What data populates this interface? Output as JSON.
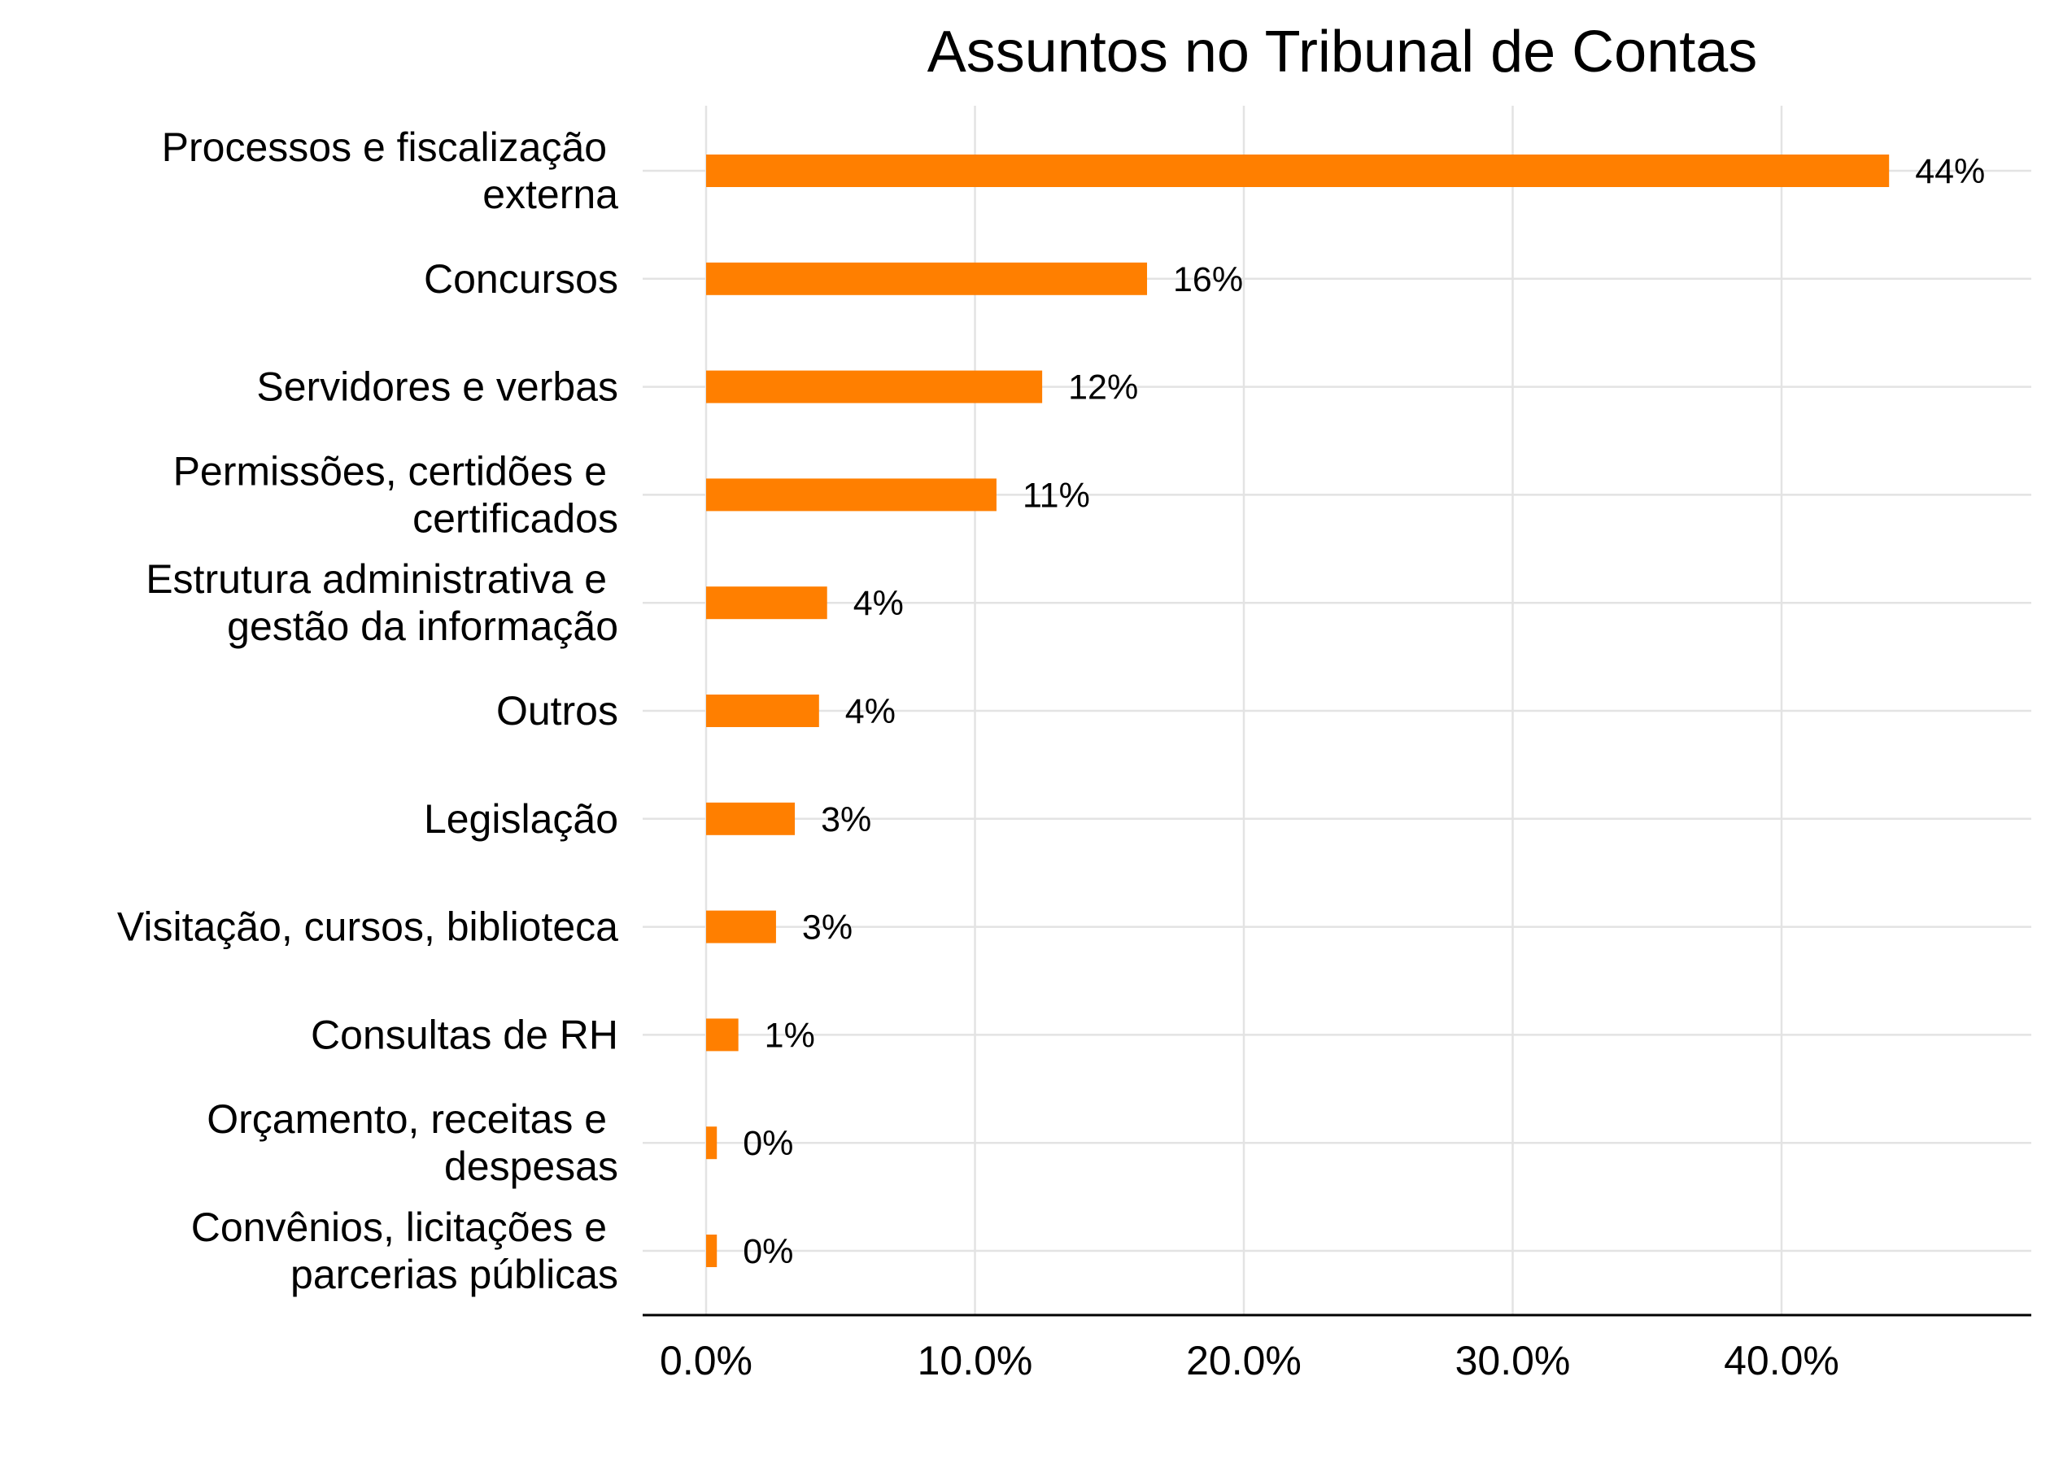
{
  "chart_data": {
    "type": "bar",
    "orientation": "horizontal",
    "title": "Assuntos no Tribunal de Contas",
    "xlabel": "",
    "ylabel": "",
    "categories": [
      "Processos e fiscalização \nexterna",
      "Concursos",
      "Servidores e verbas",
      "Permissões, certidões e \ncertificados",
      "Estrutura administrativa e \ngestão da informação",
      "Outros",
      "Legislação",
      "Visitação, cursos, biblioteca",
      "Consultas de RH",
      "Orçamento, receitas e \ndespesas",
      "Convênios, licitações e \nparcerias públicas"
    ],
    "values": [
      44.0,
      16.4,
      12.5,
      10.8,
      4.5,
      4.2,
      3.3,
      2.6,
      1.2,
      0.4,
      0.4
    ],
    "data_labels": [
      "44%",
      "16%",
      "12%",
      "11%",
      "4%",
      "4%",
      "3%",
      "3%",
      "1%",
      "0%",
      "0%"
    ],
    "xticks": [
      0,
      10,
      20,
      30,
      40
    ],
    "xtick_labels": [
      "0.0%",
      "10.0%",
      "20.0%",
      "30.0%",
      "40.0%"
    ],
    "xlim": [
      0,
      49.2
    ],
    "grid": true,
    "legend": "none",
    "colors": {
      "bar": "#ff7f00",
      "grid": "#e3e3e3",
      "axis": "#000000",
      "text": "#000000"
    }
  }
}
